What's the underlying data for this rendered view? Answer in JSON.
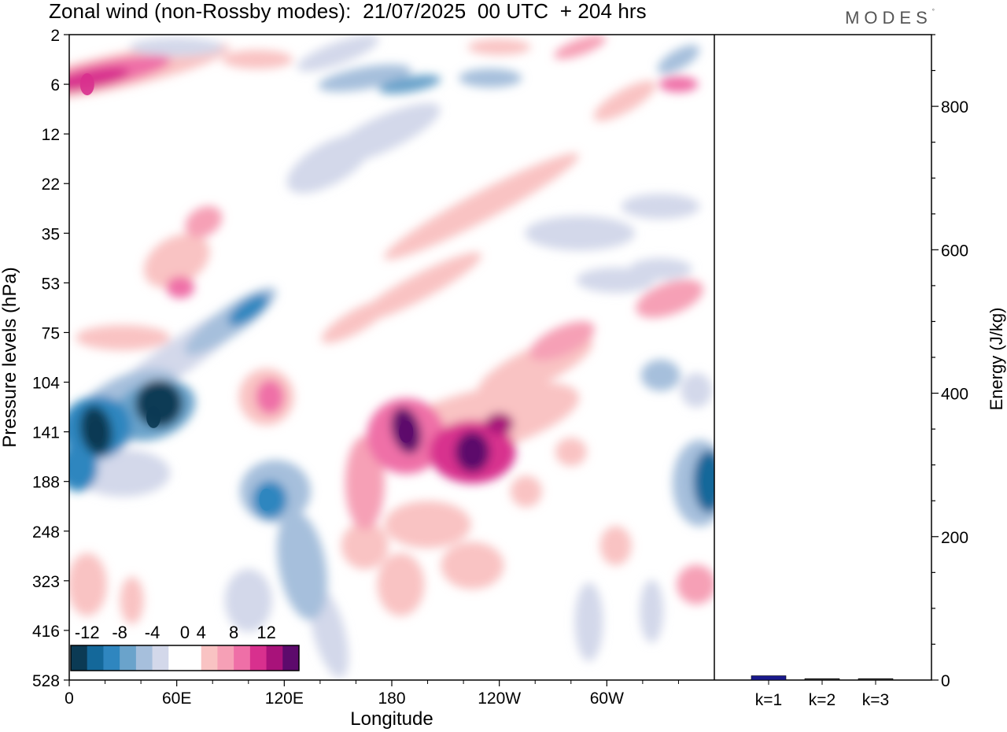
{
  "header": {
    "title": "Zonal wind (non-Rossby modes):  21/07/2025  00 UTC  + 204 hrs",
    "logo": "MODES",
    "logo_mark": "°"
  },
  "chart_data": [
    {
      "type": "heatmap",
      "title": "Zonal wind (non-Rossby modes):  21/07/2025  00 UTC  + 204 hrs",
      "xlabel": "Longitude",
      "ylabel": "Pressure levels (hPa)",
      "x_ticks": [
        "0",
        "60E",
        "120E",
        "180",
        "120W",
        "60W"
      ],
      "y_ticks": [
        "2",
        "6",
        "12",
        "22",
        "35",
        "53",
        "75",
        "104",
        "141",
        "188",
        "248",
        "323",
        "416",
        "528"
      ],
      "colorbar": {
        "tick_labels": [
          "-12",
          "-8",
          "-4",
          "0",
          "4",
          "8",
          "12"
        ],
        "levels": [
          -14,
          -12,
          -10,
          -8,
          -6,
          -4,
          -2,
          2,
          4,
          6,
          8,
          10,
          12,
          14
        ],
        "colors": [
          "#0b3a54",
          "#14689a",
          "#2f86bf",
          "#6aa3cb",
          "#a6bfdc",
          "#d3d8ea",
          "#ffffff",
          "#ffffff",
          "#f9c3c3",
          "#f6a0b6",
          "#ef6fa7",
          "#d8308e",
          "#a8127a",
          "#5d0a6c"
        ]
      },
      "features": [
        {
          "label": "negative core",
          "lon": 15,
          "level_hPa": 141,
          "value": -14
        },
        {
          "label": "negative core",
          "lon": 47,
          "level_hPa": 130,
          "value": -14
        },
        {
          "label": "negative core",
          "lon": 110,
          "level_hPa": 210,
          "value": -10
        },
        {
          "label": "negative core",
          "lon": 358,
          "level_hPa": 188,
          "value": -12
        },
        {
          "label": "positive core",
          "lon": 10,
          "level_hPa": 6,
          "value": 10
        },
        {
          "label": "positive core",
          "lon": 188,
          "level_hPa": 141,
          "value": 14
        },
        {
          "label": "positive core",
          "lon": 225,
          "level_hPa": 160,
          "value": 14
        }
      ]
    },
    {
      "type": "bar",
      "ylabel": "Energy (J/kg)",
      "categories": [
        "k=1",
        "k=2",
        "k=3"
      ],
      "values": [
        6,
        2,
        2
      ],
      "ylim": [
        0,
        900
      ],
      "y_ticks": [
        "0",
        "200",
        "400",
        "600",
        "800"
      ],
      "bar_color": "#1a1a8c"
    }
  ]
}
